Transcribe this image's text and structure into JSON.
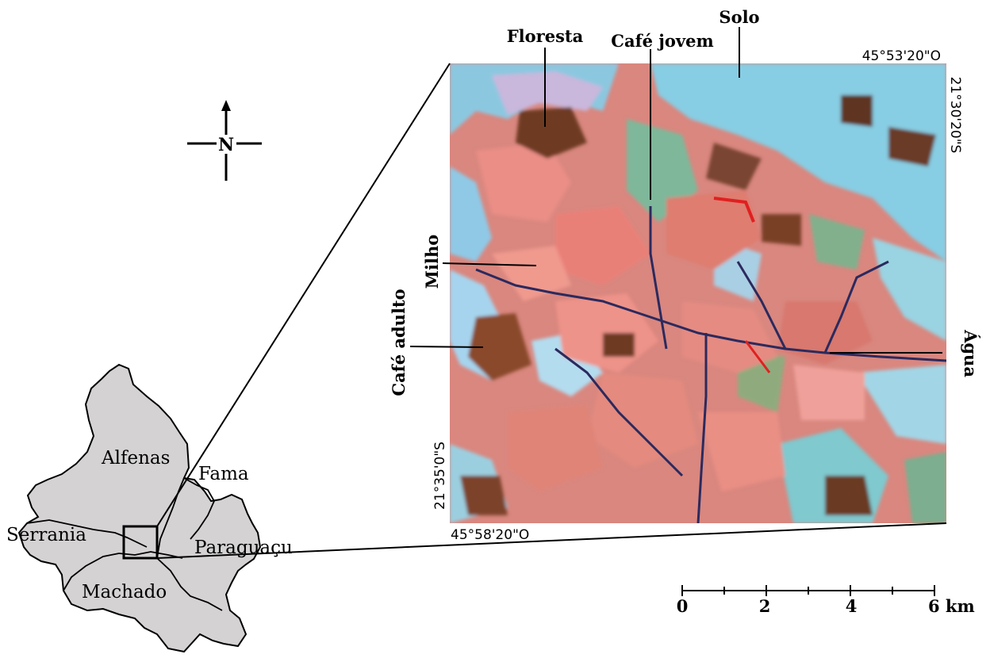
{
  "north_arrow": {
    "label": "N"
  },
  "image_labels": {
    "floresta": "Floresta",
    "cafe_jovem": "Café jovem",
    "solo": "Solo",
    "milho": "Milho",
    "cafe_adulto": "Café adulto",
    "agua": "Água"
  },
  "coordinates": {
    "top_right_lon": "45°53'20\"O",
    "right_lat": "21°30'20\"S",
    "left_lat": "21°35'0\"S",
    "bottom_left_lon": "45°58'20\"O"
  },
  "municipalities": {
    "alfenas": "Alfenas",
    "fama": "Fama",
    "serrania": "Serrania",
    "paraguacu": "Paraguaçu",
    "machado": "Machado"
  },
  "scale_bar": {
    "labels": [
      "0",
      "2",
      "4",
      "6 km"
    ]
  },
  "colors": {
    "region_fill": "#d4d2d3",
    "image_pink": "#e08a7e",
    "image_cyan": "#8fd0e4",
    "image_brown": "#6e3b22"
  }
}
